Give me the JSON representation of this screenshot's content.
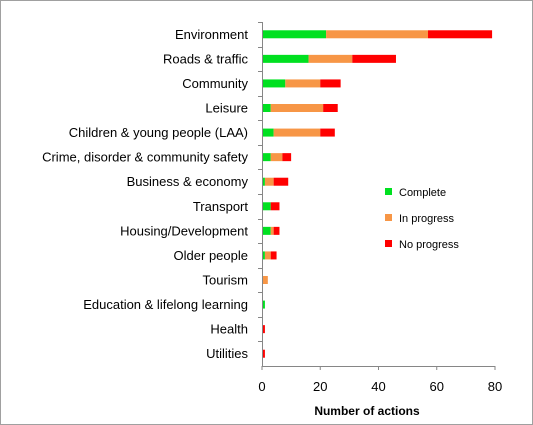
{
  "chart_data": {
    "type": "bar",
    "orientation": "horizontal",
    "stacked": true,
    "categories": [
      "Environment",
      "Roads & traffic",
      "Community",
      "Leisure",
      "Children & young people (LAA)",
      "Crime, disorder & community safety",
      "Business & economy",
      "Transport",
      "Housing/Development",
      "Older people",
      "Tourism",
      "Education & lifelong learning",
      "Health",
      "Utilities"
    ],
    "series": [
      {
        "name": "Complete",
        "color": "#00e020",
        "values": [
          22,
          16,
          8,
          3,
          4,
          3,
          1,
          3,
          3,
          1,
          0,
          1,
          0,
          0
        ]
      },
      {
        "name": "In progress",
        "color": "#f79646",
        "values": [
          35,
          15,
          12,
          18,
          16,
          4,
          3,
          0,
          1,
          2,
          2,
          0,
          0,
          0
        ]
      },
      {
        "name": "No progress",
        "color": "#ff0000",
        "values": [
          22,
          15,
          7,
          5,
          5,
          3,
          5,
          3,
          2,
          2,
          0,
          0,
          1,
          1
        ]
      }
    ],
    "xlabel": "Number of actions",
    "ylabel": "",
    "title": "",
    "xlim": [
      0,
      80
    ],
    "xticks": [
      "0",
      "20",
      "40",
      "60",
      "80"
    ],
    "grid": false,
    "legend_position": "right"
  }
}
